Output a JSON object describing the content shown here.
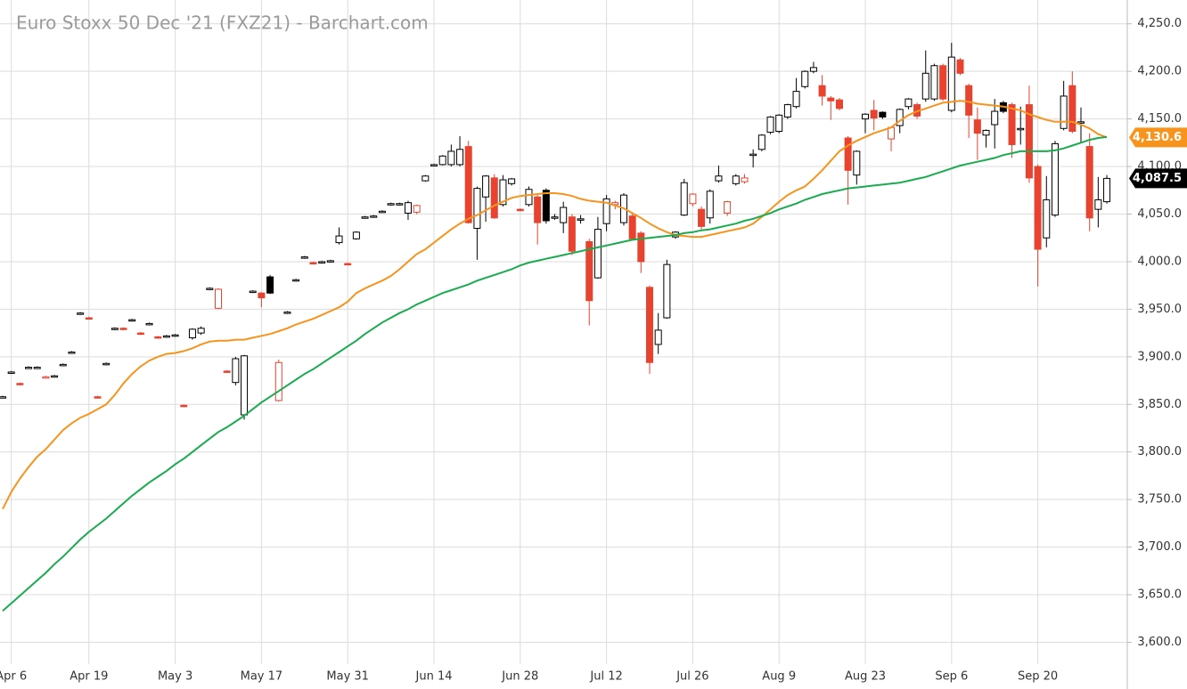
{
  "chart_data": {
    "type": "candlestick",
    "title": "Euro Stoxx 50 Dec '21 (FXZ21) - Barchart.com",
    "categories": [
      null,
      "Apr 6",
      null,
      null,
      null,
      null,
      null,
      null,
      null,
      null,
      "Apr 19",
      null,
      null,
      null,
      null,
      null,
      null,
      null,
      null,
      null,
      "May 3",
      null,
      null,
      null,
      null,
      null,
      null,
      null,
      null,
      null,
      "May 17",
      null,
      null,
      null,
      null,
      null,
      null,
      null,
      null,
      null,
      "May 31",
      null,
      null,
      null,
      null,
      null,
      null,
      null,
      null,
      null,
      "Jun 14",
      null,
      null,
      null,
      null,
      null,
      null,
      null,
      null,
      null,
      "Jun 28",
      null,
      null,
      null,
      null,
      null,
      null,
      null,
      null,
      null,
      "Jul 12",
      null,
      null,
      null,
      null,
      null,
      null,
      null,
      null,
      null,
      "Jul 26",
      null,
      null,
      null,
      null,
      null,
      null,
      null,
      null,
      null,
      "Aug 9",
      null,
      null,
      null,
      null,
      null,
      null,
      null,
      null,
      null,
      "Aug 23",
      null,
      null,
      null,
      null,
      null,
      null,
      null,
      null,
      null,
      "Sep 6",
      null,
      null,
      null,
      null,
      null,
      null,
      null,
      null,
      null,
      "Sep 20",
      null,
      null,
      null,
      null,
      null,
      null,
      null,
      null
    ],
    "ohlc": [
      [
        3858,
        3859,
        3857,
        3858
      ],
      [
        3883,
        3885,
        3882,
        3884
      ],
      [
        3872,
        3873,
        3870,
        3871
      ],
      [
        3889,
        3890,
        3888,
        3889
      ],
      [
        3889,
        3890,
        3888,
        3889
      ],
      [
        3879,
        3880,
        3878,
        3879
      ],
      [
        3880,
        3881,
        3879,
        3880
      ],
      [
        3891,
        3893,
        3890,
        3892
      ],
      [
        3904,
        3906,
        3903,
        3905
      ],
      [
        3945,
        3947,
        3944,
        3946
      ],
      [
        3941,
        3942,
        3939,
        3940
      ],
      [
        3858,
        3859,
        3856,
        3857
      ],
      [
        3892,
        3894,
        3891,
        3893
      ],
      [
        3929,
        3931,
        3928,
        3930
      ],
      [
        3930,
        3931,
        3928,
        3929
      ],
      [
        3938,
        3940,
        3937,
        3939
      ],
      [
        3925,
        3926,
        3923,
        3924
      ],
      [
        3934,
        3936,
        3933,
        3935
      ],
      [
        3921,
        3922,
        3919,
        3920
      ],
      [
        3921,
        3923,
        3920,
        3922
      ],
      [
        3922,
        3924,
        3921,
        3923
      ],
      [
        3849,
        3850,
        3847,
        3848
      ],
      [
        3920,
        3930,
        3918,
        3929
      ],
      [
        3925,
        3932,
        3923,
        3930
      ],
      [
        3971,
        3973,
        3970,
        3972
      ],
      [
        3951,
        3972,
        3950,
        3971
      ],
      [
        3885,
        3886,
        3883,
        3884
      ],
      [
        3873,
        3900,
        3870,
        3898
      ],
      [
        3839,
        3902,
        3834,
        3901
      ],
      [
        3968,
        3970,
        3967,
        3969
      ],
      [
        3967,
        3968,
        3952,
        3962
      ],
      [
        3984,
        3986,
        3966,
        3967
      ],
      [
        3854,
        3897,
        3853,
        3894
      ],
      [
        3946,
        3948,
        3945,
        3947
      ],
      [
        3980,
        3982,
        3979,
        3981
      ],
      [
        4004,
        4006,
        4003,
        4005
      ],
      [
        3999,
        4000,
        3997,
        3998
      ],
      [
        3999,
        4001,
        3998,
        4000
      ],
      [
        4000,
        4002,
        3999,
        4001
      ],
      [
        4020,
        4036,
        4018,
        4027
      ],
      [
        3998,
        3999,
        3996,
        3997
      ],
      [
        4024,
        4032,
        4023,
        4031
      ],
      [
        4046,
        4048,
        4045,
        4047
      ],
      [
        4047,
        4049,
        4046,
        4048
      ],
      [
        4052,
        4054,
        4051,
        4053
      ],
      [
        4060,
        4062,
        4059,
        4061
      ],
      [
        4060,
        4062,
        4059,
        4061
      ],
      [
        4051,
        4064,
        4044,
        4062
      ],
      [
        4052,
        4060,
        4050,
        4059
      ],
      [
        4085,
        4091,
        4084,
        4090
      ],
      [
        4101,
        4103,
        4100,
        4102
      ],
      [
        4102,
        4112,
        4101,
        4111
      ],
      [
        4102,
        4123,
        4100,
        4116
      ],
      [
        4102,
        4132,
        4100,
        4118
      ],
      [
        4121,
        4127,
        4040,
        4041
      ],
      [
        4035,
        4079,
        4002,
        4077
      ],
      [
        4068,
        4091,
        4042,
        4090
      ],
      [
        4088,
        4092,
        4045,
        4046
      ],
      [
        4060,
        4091,
        4058,
        4086
      ],
      [
        4082,
        4088,
        4080,
        4087
      ],
      [
        4055,
        4056,
        4053,
        4054
      ],
      [
        4060,
        4079,
        4058,
        4076
      ],
      [
        4068,
        4070,
        4018,
        4041
      ],
      [
        4075,
        4077,
        4040,
        4043
      ],
      [
        4046,
        4050,
        4044,
        4047
      ],
      [
        4041,
        4063,
        4030,
        4057
      ],
      [
        4047,
        4050,
        4007,
        4011
      ],
      [
        4044,
        4049,
        4040,
        4045
      ],
      [
        4021,
        4024,
        3933,
        3959
      ],
      [
        3983,
        4047,
        3982,
        4034
      ],
      [
        4040,
        4070,
        4032,
        4066
      ],
      [
        4060,
        4064,
        4055,
        4062
      ],
      [
        4041,
        4072,
        4038,
        4070
      ],
      [
        4048,
        4050,
        4022,
        4024
      ],
      [
        4030,
        4032,
        3988,
        4000
      ],
      [
        3973,
        3975,
        3882,
        3894
      ],
      [
        3913,
        3946,
        3903,
        3928
      ],
      [
        3941,
        4002,
        3940,
        3997
      ],
      [
        4026,
        4032,
        4024,
        4031
      ],
      [
        4049,
        4087,
        4048,
        4083
      ],
      [
        4061,
        4072,
        4058,
        4071
      ],
      [
        4055,
        4058,
        4034,
        4037
      ],
      [
        4046,
        4076,
        4040,
        4074
      ],
      [
        4085,
        4101,
        4083,
        4090
      ],
      [
        4051,
        4064,
        4048,
        4063
      ],
      [
        4082,
        4092,
        4080,
        4090
      ],
      [
        4084,
        4092,
        4082,
        4088
      ],
      [
        4112,
        4118,
        4099,
        4113
      ],
      [
        4118,
        4134,
        4116,
        4133
      ],
      [
        4136,
        4153,
        4134,
        4152
      ],
      [
        4137,
        4155,
        4135,
        4154
      ],
      [
        4152,
        4166,
        4150,
        4165
      ],
      [
        4163,
        4193,
        4161,
        4179
      ],
      [
        4184,
        4201,
        4182,
        4200
      ],
      [
        4200,
        4210,
        4198,
        4204
      ],
      [
        4185,
        4196,
        4164,
        4174
      ],
      [
        4172,
        4174,
        4149,
        4169
      ],
      [
        4170,
        4172,
        4159,
        4161
      ],
      [
        4130,
        4132,
        4060,
        4096
      ],
      [
        4091,
        4117,
        4081,
        4116
      ],
      [
        4150,
        4156,
        4135,
        4155
      ],
      [
        4159,
        4170,
        4138,
        4151
      ],
      [
        4157,
        4158,
        4150,
        4152
      ],
      [
        4129,
        4142,
        4116,
        4141
      ],
      [
        4143,
        4161,
        4135,
        4160
      ],
      [
        4163,
        4172,
        4160,
        4171
      ],
      [
        4165,
        4167,
        4150,
        4153
      ],
      [
        4171,
        4222,
        4168,
        4198
      ],
      [
        4171,
        4208,
        4169,
        4206
      ],
      [
        4206,
        4208,
        4169,
        4171
      ],
      [
        4159,
        4230,
        4157,
        4215
      ],
      [
        4212,
        4214,
        4196,
        4198
      ],
      [
        4185,
        4187,
        4130,
        4154
      ],
      [
        4149,
        4162,
        4107,
        4135
      ],
      [
        4133,
        4139,
        4120,
        4138
      ],
      [
        4144,
        4171,
        4119,
        4158
      ],
      [
        4167,
        4169,
        4156,
        4158
      ],
      [
        4165,
        4167,
        4109,
        4123
      ],
      [
        4139,
        4163,
        4123,
        4140
      ],
      [
        4165,
        4185,
        4083,
        4088
      ],
      [
        4100,
        4102,
        3974,
        4013
      ],
      [
        4025,
        4090,
        4015,
        4065
      ],
      [
        4049,
        4127,
        4047,
        4124
      ],
      [
        4140,
        4190,
        4138,
        4174
      ],
      [
        4185,
        4200,
        4135,
        4137
      ],
      [
        4147,
        4162,
        4125,
        4147
      ],
      [
        4121,
        4135,
        4032,
        4046
      ],
      [
        4055,
        4089,
        4036,
        4065
      ],
      [
        4063,
        4091,
        4061,
        4087.5
      ]
    ],
    "up_color": "#000000",
    "down_color": "#e8432f",
    "last_label": "4,087.5",
    "lines": [
      {
        "color": "#f7941d",
        "last_label": "4,130.6",
        "values": [
          3740,
          3758,
          3772,
          3784,
          3795,
          3803,
          3813,
          3823,
          3830,
          3836,
          3840,
          3845,
          3850,
          3860,
          3872,
          3882,
          3890,
          3896,
          3900,
          3903,
          3904,
          3906,
          3909,
          3913,
          3916,
          3917,
          3917,
          3918,
          3918,
          3920,
          3922,
          3924,
          3927,
          3930,
          3934,
          3937,
          3940,
          3944,
          3948,
          3952,
          3958,
          3967,
          3972,
          3976,
          3980,
          3985,
          3992,
          4000,
          4008,
          4013,
          4020,
          4027,
          4034,
          4040,
          4045,
          4049,
          4054,
          4059,
          4063,
          4067,
          4069,
          4070,
          4071,
          4072,
          4072,
          4071,
          4069,
          4066,
          4064,
          4063,
          4062,
          4059,
          4056,
          4051,
          4046,
          4040,
          4035,
          4031,
          4028,
          4027,
          4026,
          4026,
          4028,
          4030,
          4032,
          4034,
          4036,
          4040,
          4047,
          4055,
          4063,
          4070,
          4075,
          4079,
          4087,
          4096,
          4106,
          4116,
          4122,
          4127,
          4131,
          4135,
          4138,
          4141,
          4148,
          4154,
          4158,
          4161,
          4164,
          4167,
          4168,
          4169,
          4168,
          4166,
          4165,
          4164,
          4163,
          4161,
          4159,
          4155,
          4152,
          4149,
          4147,
          4147,
          4147,
          4144,
          4140,
          4134,
          4130.6
        ]
      },
      {
        "color": "#1aab4f",
        "values": [
          3633,
          3641,
          3649,
          3657,
          3665,
          3673,
          3682,
          3690,
          3699,
          3708,
          3716,
          3723,
          3730,
          3738,
          3746,
          3754,
          3761,
          3768,
          3774,
          3780,
          3787,
          3793,
          3800,
          3807,
          3814,
          3821,
          3826,
          3832,
          3838,
          3845,
          3852,
          3858,
          3864,
          3870,
          3876,
          3882,
          3887,
          3893,
          3899,
          3905,
          3911,
          3917,
          3924,
          3930,
          3936,
          3941,
          3946,
          3950,
          3955,
          3959,
          3963,
          3967,
          3970,
          3973,
          3976,
          3980,
          3983,
          3986,
          3989,
          3992,
          3996,
          3999,
          4001,
          4003,
          4005,
          4007,
          4009,
          4011,
          4013,
          4015,
          4017,
          4019,
          4021,
          4023,
          4024,
          4025,
          4026,
          4027,
          4028,
          4030,
          4031,
          4033,
          4034,
          4036,
          4038,
          4040,
          4043,
          4045,
          4048,
          4051,
          4055,
          4058,
          4061,
          4065,
          4068,
          4071,
          4073,
          4075,
          4077,
          4078,
          4079,
          4080,
          4081,
          4082,
          4083,
          4085,
          4087,
          4089,
          4092,
          4095,
          4098,
          4101,
          4103,
          4105,
          4107,
          4109,
          4112,
          4114,
          4116,
          4116,
          4116,
          4116,
          4117,
          4119,
          4122,
          4125,
          4128,
          4130,
          4131
        ]
      }
    ],
    "ylim": [
      3578,
      4275
    ],
    "yticks": [
      {
        "value": 3600,
        "label": "3,600.0"
      },
      {
        "value": 3650,
        "label": "3,650.0"
      },
      {
        "value": 3700,
        "label": "3,700.0"
      },
      {
        "value": 3750,
        "label": "3,750.0"
      },
      {
        "value": 3800,
        "label": "3,800.0"
      },
      {
        "value": 3850,
        "label": "3,850.0"
      },
      {
        "value": 3900,
        "label": "3,900.0"
      },
      {
        "value": 3950,
        "label": "3,950.0"
      },
      {
        "value": 4000,
        "label": "4,000.0"
      },
      {
        "value": 4050,
        "label": "4,050.0"
      },
      {
        "value": 4100,
        "label": "4,100.0"
      },
      {
        "value": 4150,
        "label": "4,150.0"
      },
      {
        "value": 4200,
        "label": "4,200.0"
      },
      {
        "value": 4250,
        "label": "4,250.0"
      }
    ],
    "grid": true
  }
}
